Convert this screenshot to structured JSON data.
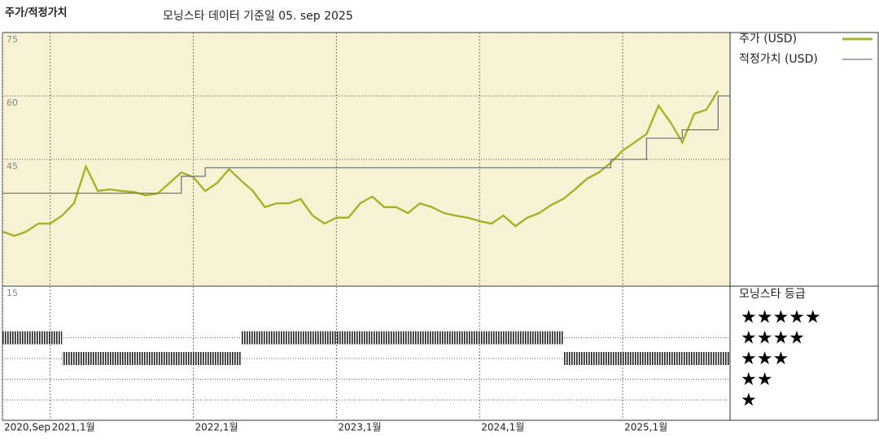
{
  "chart_data": [
    {
      "type": "line",
      "title": "주가/적정가치",
      "subtitle": "모닝스타 데이터 기준일 05. sep 2025",
      "x": [
        "2020-09",
        "2020-10",
        "2020-11",
        "2020-12",
        "2021-01",
        "2021-02",
        "2021-03",
        "2021-04",
        "2021-05",
        "2021-06",
        "2021-07",
        "2021-08",
        "2021-09",
        "2021-10",
        "2021-11",
        "2021-12",
        "2022-01",
        "2022-02",
        "2022-03",
        "2022-04",
        "2022-05",
        "2022-06",
        "2022-07",
        "2022-08",
        "2022-09",
        "2022-10",
        "2022-11",
        "2022-12",
        "2023-01",
        "2023-02",
        "2023-03",
        "2023-04",
        "2023-05",
        "2023-06",
        "2023-07",
        "2023-08",
        "2023-09",
        "2023-10",
        "2023-11",
        "2023-12",
        "2024-01",
        "2024-02",
        "2024-03",
        "2024-04",
        "2024-05",
        "2024-06",
        "2024-07",
        "2024-08",
        "2024-09",
        "2024-10",
        "2024-11",
        "2024-12",
        "2025-01",
        "2025-02",
        "2025-03",
        "2025-04",
        "2025-05",
        "2025-06",
        "2025-07",
        "2025-08",
        "2025-09"
      ],
      "xlim": [
        "2020-09",
        "2025-10"
      ],
      "xticks": [
        {
          "value": "2020-09",
          "label": "2020,Sep"
        },
        {
          "value": "2021-01",
          "label": "2021,1월"
        },
        {
          "value": "2022-01",
          "label": "2022,1월"
        },
        {
          "value": "2023-01",
          "label": "2023,1월"
        },
        {
          "value": "2024-01",
          "label": "2024,1월"
        },
        {
          "value": "2025-01",
          "label": "2025,1월"
        }
      ],
      "ylim": [
        15,
        75
      ],
      "yticks": [
        15,
        45,
        60,
        75
      ],
      "grid": true,
      "series": [
        {
          "name": "주가 (USD)",
          "color": "#a9b128",
          "values": [
            27.9,
            26.9,
            27.9,
            29.8,
            29.8,
            31.7,
            34.6,
            43.3,
            37.5,
            37.9,
            37.5,
            37.3,
            36.5,
            36.9,
            39.4,
            41.9,
            40.8,
            37.5,
            39.4,
            42.7,
            40.0,
            37.5,
            33.7,
            34.6,
            34.6,
            35.6,
            31.7,
            29.8,
            31.2,
            31.2,
            34.6,
            36.2,
            33.7,
            33.7,
            32.3,
            34.6,
            33.7,
            32.3,
            31.7,
            31.2,
            30.4,
            29.8,
            31.7,
            29.2,
            31.2,
            32.3,
            34.2,
            35.6,
            37.9,
            40.4,
            41.9,
            44.2,
            47.1,
            49.0,
            51.0,
            57.7,
            53.8,
            49.0,
            55.8,
            56.7,
            61.2
          ]
        },
        {
          "name": "적정가치 (USD)",
          "color": "#777777",
          "step": true,
          "values": [
            37,
            37,
            37,
            37,
            37,
            37,
            37,
            37,
            37,
            37,
            37,
            37,
            37,
            37,
            37,
            41,
            41,
            43,
            43,
            43,
            43,
            43,
            43,
            43,
            43,
            43,
            43,
            43,
            43,
            43,
            43,
            43,
            43,
            43,
            43,
            43,
            43,
            43,
            43,
            43,
            43,
            43,
            43,
            43,
            43,
            43,
            43,
            43,
            43,
            43,
            43,
            45,
            45,
            45,
            50,
            50,
            50,
            52,
            52,
            52,
            60
          ]
        }
      ]
    },
    {
      "type": "rating",
      "title": "모닝스타 등급",
      "color": "#222222",
      "x": [
        "2020-09",
        "2020-10",
        "2020-11",
        "2020-12",
        "2021-01",
        "2021-02",
        "2021-03",
        "2021-04",
        "2021-05",
        "2021-06",
        "2021-07",
        "2021-08",
        "2021-09",
        "2021-10",
        "2021-11",
        "2021-12",
        "2022-01",
        "2022-02",
        "2022-03",
        "2022-04",
        "2022-05",
        "2022-06",
        "2022-07",
        "2022-08",
        "2022-09",
        "2022-10",
        "2022-11",
        "2022-12",
        "2023-01",
        "2023-02",
        "2023-03",
        "2023-04",
        "2023-05",
        "2023-06",
        "2023-07",
        "2023-08",
        "2023-09",
        "2023-10",
        "2023-11",
        "2023-12",
        "2024-01",
        "2024-02",
        "2024-03",
        "2024-04",
        "2024-05",
        "2024-06",
        "2024-07",
        "2024-08",
        "2024-09",
        "2024-10",
        "2024-11",
        "2024-12",
        "2025-01",
        "2025-02",
        "2025-03",
        "2025-04",
        "2025-05",
        "2025-06",
        "2025-07",
        "2025-08",
        "2025-09"
      ],
      "levels": [
        {
          "value": 5,
          "label": "★★★★★"
        },
        {
          "value": 4,
          "label": "★★★★"
        },
        {
          "value": 3,
          "label": "★★★"
        },
        {
          "value": 2,
          "label": "★★"
        },
        {
          "value": 1,
          "label": "★"
        }
      ],
      "values": [
        4,
        4,
        4,
        4,
        4,
        3,
        3,
        3,
        3,
        3,
        3,
        3,
        3,
        3,
        3,
        3,
        3,
        3,
        3,
        3,
        4,
        4,
        4,
        4,
        4,
        4,
        4,
        4,
        4,
        4,
        4,
        4,
        4,
        4,
        4,
        4,
        4,
        4,
        4,
        4,
        4,
        4,
        4,
        4,
        4,
        4,
        4,
        3,
        3,
        3,
        3,
        3,
        3,
        3,
        3,
        3,
        3,
        3,
        3,
        3,
        3
      ]
    }
  ]
}
